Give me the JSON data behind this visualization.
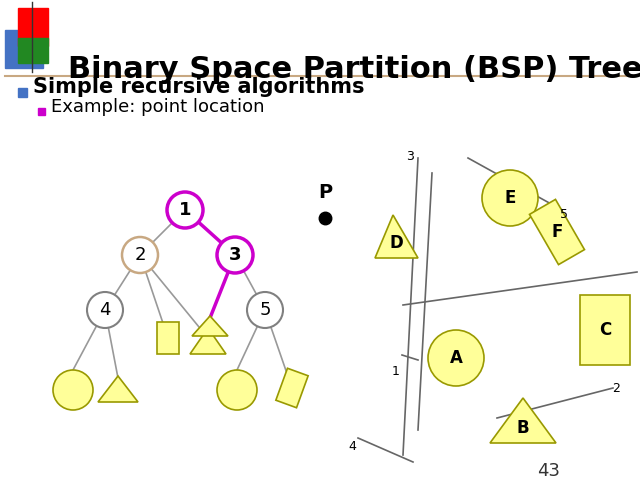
{
  "title": "Binary Space Partition (BSP) Tree",
  "bullet1": "Simple recursive algorithms",
  "bullet2": "Example: point location",
  "slide_number": "43",
  "bg_color": "#ffffff",
  "title_color": "#000000",
  "bullet_color": "#000000",
  "bullet1_marker_color": "#4472c4",
  "bullet2_marker_color": "#cc00cc",
  "yellow_fill": "#ffff99",
  "yellow_edge": "#999900",
  "tree_node2_color": "#c8a882",
  "tree_node_gray": "#808080",
  "highlight_edge": "#cc00cc"
}
